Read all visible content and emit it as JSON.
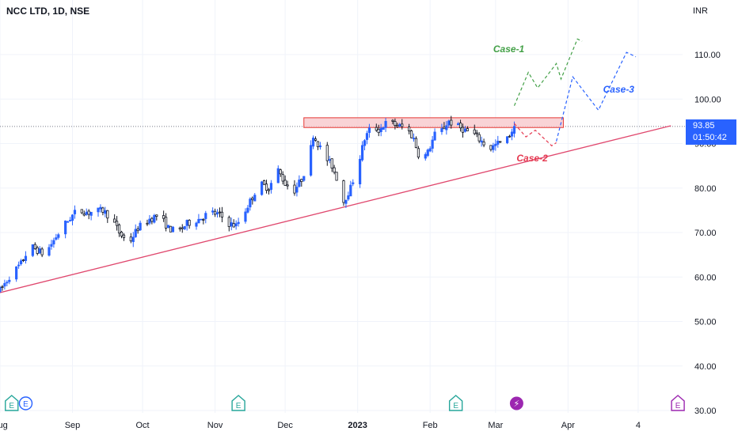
{
  "header": {
    "title": "NCC LTD, 1D, NSE",
    "currency": "INR"
  },
  "last_price": {
    "value": "93.85",
    "countdown": "01:50:42"
  },
  "colors": {
    "up": "#2962ff",
    "down": "#131722",
    "trendline": "#e0486e",
    "zone_fill": "#f8c8cc",
    "zone_border": "#e53935",
    "case1": "#43a047",
    "case2": "#e53950",
    "case3": "#2962ff",
    "earnings_icon": "#26a69a",
    "split_icon": "#9c27b0"
  },
  "chart_data": {
    "type": "candlestick",
    "title": "NCC LTD, 1D, NSE",
    "ylabel": "INR",
    "ylim": [
      30,
      120
    ],
    "y_ticks": [
      {
        "value": 110,
        "label": "110.00"
      },
      {
        "value": 100,
        "label": "100.00"
      },
      {
        "value": 90,
        "label": "90.00"
      },
      {
        "value": 80,
        "label": "80.00"
      },
      {
        "value": 70,
        "label": "70.00"
      },
      {
        "value": 60,
        "label": "60.00"
      },
      {
        "value": 50,
        "label": "50.00"
      },
      {
        "value": 40,
        "label": "40.00"
      },
      {
        "value": 30,
        "label": "30.00"
      }
    ],
    "x_ticks": [
      {
        "date": "2022-08-01",
        "label": "Aug"
      },
      {
        "date": "2022-09-01",
        "label": "Sep"
      },
      {
        "date": "2022-10-01",
        "label": "Oct"
      },
      {
        "date": "2022-11-01",
        "label": "Nov"
      },
      {
        "date": "2022-12-01",
        "label": "Dec"
      },
      {
        "date": "2023-01-01",
        "label": "2023",
        "bold": true
      },
      {
        "date": "2023-02-01",
        "label": "Feb"
      },
      {
        "date": "2023-03-01",
        "label": "Mar"
      },
      {
        "date": "2023-04-01",
        "label": "Apr"
      },
      {
        "date": "2023-05-01",
        "label": "4"
      }
    ],
    "xlim": [
      "2022-08-01",
      "2023-05-20"
    ],
    "price_path": [
      [
        "2022-08-01",
        57
      ],
      [
        "2022-08-05",
        60
      ],
      [
        "2022-08-10",
        63
      ],
      [
        "2022-08-14",
        67
      ],
      [
        "2022-08-20",
        65
      ],
      [
        "2022-08-25",
        69
      ],
      [
        "2022-08-29",
        72
      ],
      [
        "2022-09-03",
        75
      ],
      [
        "2022-09-08",
        74.5
      ],
      [
        "2022-09-14",
        75
      ],
      [
        "2022-09-18",
        73
      ],
      [
        "2022-09-21",
        70
      ],
      [
        "2022-09-25",
        67.5
      ],
      [
        "2022-09-29",
        71
      ],
      [
        "2022-10-04",
        73
      ],
      [
        "2022-10-08",
        74
      ],
      [
        "2022-10-12",
        71
      ],
      [
        "2022-10-16",
        70
      ],
      [
        "2022-10-20",
        72
      ],
      [
        "2022-10-25",
        73
      ],
      [
        "2022-10-30",
        74.5
      ],
      [
        "2022-11-03",
        74
      ],
      [
        "2022-11-07",
        72
      ],
      [
        "2022-11-10",
        71.5
      ],
      [
        "2022-11-14",
        75
      ],
      [
        "2022-11-17",
        78
      ],
      [
        "2022-11-20",
        81
      ],
      [
        "2022-11-24",
        80
      ],
      [
        "2022-11-28",
        84
      ],
      [
        "2022-12-01",
        81
      ],
      [
        "2022-12-05",
        79.5
      ],
      [
        "2022-12-08",
        82
      ],
      [
        "2022-12-11",
        86
      ],
      [
        "2022-12-13",
        92
      ],
      [
        "2022-12-15",
        90
      ],
      [
        "2022-12-18",
        87
      ],
      [
        "2022-12-21",
        85
      ],
      [
        "2022-12-24",
        81
      ],
      [
        "2022-12-26",
        77
      ],
      [
        "2022-12-29",
        80
      ],
      [
        "2023-01-01",
        85
      ],
      [
        "2023-01-04",
        91
      ],
      [
        "2023-01-07",
        94
      ],
      [
        "2023-01-10",
        93
      ],
      [
        "2023-01-14",
        95
      ],
      [
        "2023-01-18",
        94
      ],
      [
        "2023-01-22",
        93.5
      ],
      [
        "2023-01-25",
        91
      ],
      [
        "2023-01-28",
        86
      ],
      [
        "2023-01-31",
        88
      ],
      [
        "2023-02-03",
        92
      ],
      [
        "2023-02-06",
        93
      ],
      [
        "2023-02-09",
        95
      ],
      [
        "2023-02-12",
        94
      ],
      [
        "2023-02-16",
        93
      ],
      [
        "2023-02-20",
        92
      ],
      [
        "2023-02-24",
        90
      ],
      [
        "2023-02-27",
        89
      ],
      [
        "2023-03-02",
        90
      ],
      [
        "2023-03-06",
        91
      ],
      [
        "2023-03-09",
        93.85
      ]
    ],
    "trendline": {
      "from": [
        "2022-08-01",
        56.5
      ],
      "to": [
        "2023-05-15",
        94
      ]
    },
    "resistance_zone": {
      "x0": "2022-12-09",
      "x1": "2023-03-30",
      "y0": 93.6,
      "y1": 95.8
    },
    "last_price_line": 93.85,
    "projections": [
      {
        "label": "Case-1",
        "color": "#43a047",
        "points": [
          [
            "2023-03-09",
            98.5
          ],
          [
            "2023-03-15",
            106
          ],
          [
            "2023-03-19",
            102.5
          ],
          [
            "2023-03-27",
            108
          ],
          [
            "2023-03-29",
            104.5
          ],
          [
            "2023-04-05",
            113.5
          ],
          [
            "2023-04-07",
            113
          ]
        ],
        "label_at": [
          "2023-02-28",
          110.5
        ]
      },
      {
        "label": "Case-2",
        "color": "#e53950",
        "points": [
          [
            "2023-03-09",
            94.5
          ],
          [
            "2023-03-14",
            91.5
          ],
          [
            "2023-03-18",
            93
          ],
          [
            "2023-03-25",
            89.5
          ],
          [
            "2023-03-27",
            90.2
          ]
        ],
        "label_at": [
          "2023-03-10",
          86
        ]
      },
      {
        "label": "Case-3",
        "color": "#2962ff",
        "points": [
          [
            "2023-03-27",
            90.5
          ],
          [
            "2023-04-03",
            105
          ],
          [
            "2023-04-14",
            97.5
          ],
          [
            "2023-04-26",
            110.5
          ],
          [
            "2023-04-30",
            109.5
          ]
        ],
        "label_at": [
          "2023-04-16",
          101.5
        ]
      }
    ],
    "events": [
      {
        "date": "2022-08-06",
        "kind": "earnings",
        "label": "E"
      },
      {
        "date": "2022-08-12",
        "kind": "earnings",
        "label": "E",
        "style": "circle"
      },
      {
        "date": "2022-11-11",
        "kind": "earnings",
        "label": "E"
      },
      {
        "date": "2023-02-12",
        "kind": "earnings",
        "label": "E"
      },
      {
        "date": "2023-03-10",
        "kind": "split",
        "label": "⚡"
      },
      {
        "date": "2023-05-18",
        "kind": "earnings",
        "label": "E",
        "style": "magenta"
      }
    ]
  }
}
